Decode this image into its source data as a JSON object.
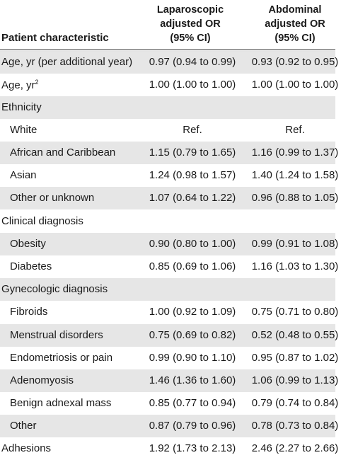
{
  "header": {
    "characteristic": "Patient characteristic",
    "laparoscopic_l1": "Laparoscopic",
    "laparoscopic_l2": "adjusted OR",
    "laparoscopic_l3": "(95% CI)",
    "abdominal_l1": "Abdominal",
    "abdominal_l2": "adjusted OR",
    "abdominal_l3": "(95% CI)"
  },
  "rows": [
    {
      "label": "Age, yr (per additional year)",
      "lap": "0.97 (0.94 to 0.99)",
      "abd": "0.93 (0.92 to 0.95)"
    },
    {
      "label": "Age, yr",
      "sup": "2",
      "lap": "1.00 (1.00 to 1.00)",
      "abd": "1.00 (1.00 to 1.00)"
    },
    {
      "label": "Ethnicity",
      "lap": "",
      "abd": ""
    },
    {
      "label": "White",
      "lap": "Ref.",
      "abd": "Ref."
    },
    {
      "label": "African and Caribbean",
      "lap": "1.15 (0.79 to 1.65)",
      "abd": "1.16 (0.99 to 1.37)"
    },
    {
      "label": "Asian",
      "lap": "1.24 (0.98 to 1.57)",
      "abd": "1.40 (1.24 to 1.58)"
    },
    {
      "label": "Other or unknown",
      "lap": "1.07 (0.64 to 1.22)",
      "abd": "0.96 (0.88 to 1.05)"
    },
    {
      "label": "Clinical diagnosis",
      "lap": "",
      "abd": ""
    },
    {
      "label": "Obesity",
      "lap": "0.90 (0.80 to 1.00)",
      "abd": "0.99 (0.91 to 1.08)"
    },
    {
      "label": "Diabetes",
      "lap": "0.85 (0.69 to 1.06)",
      "abd": "1.16 (1.03 to 1.30)"
    },
    {
      "label": "Gynecologic diagnosis",
      "lap": "",
      "abd": ""
    },
    {
      "label": "Fibroids",
      "lap": "1.00 (0.92 to 1.09)",
      "abd": "0.75 (0.71 to 0.80)"
    },
    {
      "label": "Menstrual disorders",
      "lap": "0.75 (0.69 to 0.82)",
      "abd": "0.52 (0.48 to 0.55)"
    },
    {
      "label": "Endometriosis or pain",
      "lap": "0.99 (0.90 to 1.10)",
      "abd": "0.95 (0.87 to 1.02)"
    },
    {
      "label": "Adenomyosis",
      "lap": "1.46 (1.36 to 1.60)",
      "abd": "1.06 (0.99 to 1.13)"
    },
    {
      "label": "Benign adnexal mass",
      "lap": "0.85 (0.77 to 0.94)",
      "abd": "0.79 (0.74 to 0.84)"
    },
    {
      "label": "Other",
      "lap": "0.87 (0.79 to 0.96)",
      "abd": "0.78 (0.73 to 0.84)"
    },
    {
      "label": "Adhesions",
      "lap": "1.92 (1.73 to 2.13)",
      "abd": "2.46 (2.27 to 2.66)"
    }
  ]
}
